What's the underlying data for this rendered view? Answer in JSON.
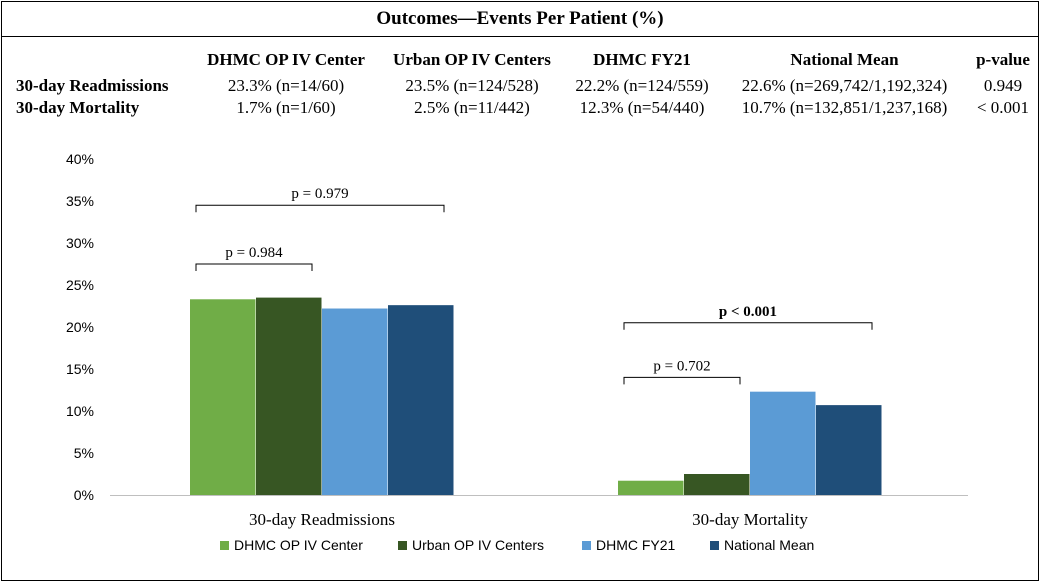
{
  "title": "Outcomes—Events Per Patient (%)",
  "table": {
    "headers": [
      "DHMC OP IV Center",
      "Urban OP IV Centers",
      "DHMC FY21",
      "National Mean",
      "p-value"
    ],
    "rows": [
      {
        "label": "30-day Readmissions",
        "cells": [
          "23.3% (n=14/60)",
          "23.5% (n=124/528)",
          "22.2% (n=124/559)",
          "22.6% (n=269,742/1,192,324)",
          "0.949"
        ]
      },
      {
        "label": "30-day Mortality",
        "cells": [
          "1.7% (n=1/60)",
          "2.5% (n=11/442)",
          "12.3% (n=54/440)",
          "10.7% (n=132,851/1,237,168)",
          "< 0.001"
        ]
      }
    ]
  },
  "chart_data": {
    "type": "bar",
    "categories": [
      "30-day Readmissions",
      "30-day Mortality"
    ],
    "series": [
      {
        "name": "DHMC OP IV Center",
        "color": "#70AD47",
        "values": [
          23.3,
          1.7
        ]
      },
      {
        "name": "Urban OP IV Centers",
        "color": "#375623",
        "values": [
          23.5,
          2.5
        ]
      },
      {
        "name": "DHMC FY21",
        "color": "#5B9BD5",
        "values": [
          22.2,
          12.3
        ]
      },
      {
        "name": "National Mean",
        "color": "#1F4E79",
        "values": [
          22.6,
          10.7
        ]
      }
    ],
    "ylim": [
      0,
      40
    ],
    "yticks": [
      "0%",
      "5%",
      "10%",
      "15%",
      "20%",
      "25%",
      "30%",
      "35%",
      "40%"
    ],
    "ytick_values": [
      0,
      5,
      10,
      15,
      20,
      25,
      30,
      35,
      40
    ],
    "legend_position": "bottom",
    "annotations": [
      {
        "category": 0,
        "from_series": 0,
        "to_series": 1,
        "y": 27.5,
        "text": "p = 0.984",
        "bold": false
      },
      {
        "category": 0,
        "from_series": 0,
        "to_series": 3,
        "y": 34.5,
        "text": "p = 0.979",
        "bold": false
      },
      {
        "category": 1,
        "from_series": 0,
        "to_series": 1,
        "y": 14.0,
        "text": "p = 0.702",
        "bold": false
      },
      {
        "category": 1,
        "from_series": 0,
        "to_series": 3,
        "y": 20.5,
        "text": "p < 0.001",
        "bold": true
      }
    ]
  }
}
